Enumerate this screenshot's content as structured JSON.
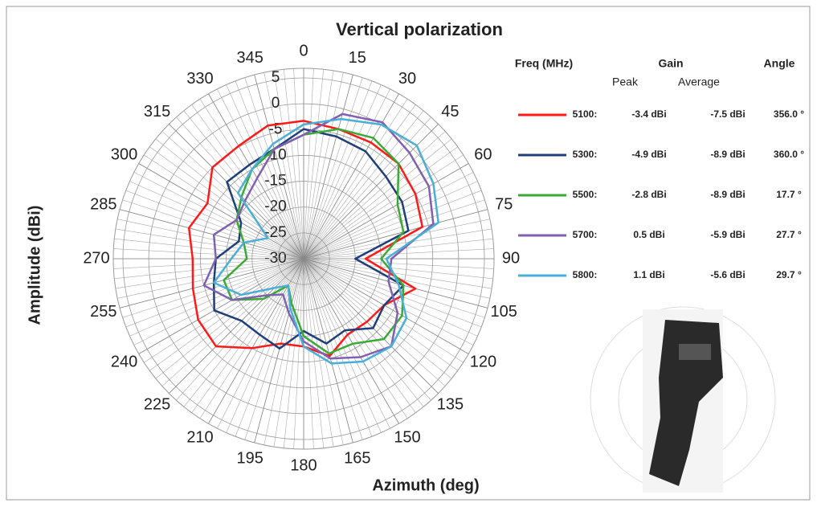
{
  "chart_data": {
    "type": "polar",
    "title": "Vertical polarization",
    "x_label": "Azimuth (deg)",
    "y_label": "Amplitude (dBi)",
    "x": [
      0,
      15,
      30,
      45,
      60,
      75,
      90,
      105,
      120,
      135,
      150,
      165,
      180,
      195,
      210,
      225,
      240,
      255,
      270,
      285,
      300,
      315,
      330,
      345
    ],
    "angle_ticks": [
      0,
      15,
      30,
      45,
      60,
      75,
      90,
      105,
      120,
      135,
      150,
      165,
      180,
      195,
      210,
      225,
      240,
      255,
      270,
      285,
      300,
      315,
      330,
      345
    ],
    "rlim": [
      -30,
      5
    ],
    "rticks": [
      -30,
      -25,
      -20,
      -15,
      -10,
      -5,
      0,
      5
    ],
    "legend_headers": {
      "freq": "Freq (MHz)",
      "gain": "Gain",
      "angle": "Angle",
      "peak": "Peak",
      "average": "Average"
    },
    "series": [
      {
        "name": "5100:",
        "color": "#ff1a1a",
        "peak": "-3.4 dBi",
        "average": "-7.5 dBi",
        "angle": "356.0 °",
        "values": [
          -3.3,
          -4,
          -4,
          -4,
          -5,
          -6.2,
          -18,
          -7.6,
          -12,
          -12.7,
          -13,
          -10.5,
          -13,
          -13,
          -10,
          -6,
          -6.4,
          -7.8,
          -8.5,
          -7,
          -8.5,
          -5,
          -4.8,
          -3.3
        ]
      },
      {
        "name": "5300:",
        "color": "#1f3f7a",
        "peak": "-4.9 dBi",
        "average": "-8.9 dBi",
        "angle": "360.0 °",
        "values": [
          -4.9,
          -5.5,
          -6,
          -7.5,
          -8,
          -9,
          -20,
          -10,
          -12,
          -11,
          -14,
          -13,
          -16,
          -12,
          -13,
          -13,
          -10,
          -12,
          -13,
          -17,
          -16,
          -9,
          -9,
          -8
        ]
      },
      {
        "name": "5500:",
        "color": "#3aaa35",
        "peak": "-2.8 dBi",
        "average": "-8.9 dBi",
        "angle": "17.7 °",
        "values": [
          -6,
          -4,
          -3,
          -4,
          -9,
          -10,
          -15,
          -10,
          -8,
          -8,
          -11,
          -11,
          -15,
          -21,
          -24,
          -19,
          -14,
          -14,
          -19,
          -18,
          -15,
          -13,
          -10,
          -8
        ]
      },
      {
        "name": "5700:",
        "color": "#8060b0",
        "peak": "0.5 dBi",
        "average": "-5.9 dBi",
        "angle": "27.7 °",
        "values": [
          -6,
          -1,
          0.5,
          -1,
          -2,
          -4,
          -13,
          -13,
          -9,
          -6,
          -8,
          -10,
          -14,
          -19,
          -22,
          -20,
          -14,
          -10,
          -13,
          -12,
          -15,
          -14,
          -12,
          -8
        ]
      },
      {
        "name": "5800:",
        "color": "#4aaed8",
        "peak": "1.1 dBi",
        "average": "-5.6 dBi",
        "angle": "29.7 °",
        "values": [
          -4,
          -2,
          0,
          1,
          -1,
          -3,
          -14,
          -11,
          -7,
          -6,
          -7,
          -9,
          -13,
          -20,
          -24,
          -22,
          -16,
          -12,
          -16,
          -18,
          -22,
          -12,
          -10,
          -7
        ]
      }
    ]
  }
}
